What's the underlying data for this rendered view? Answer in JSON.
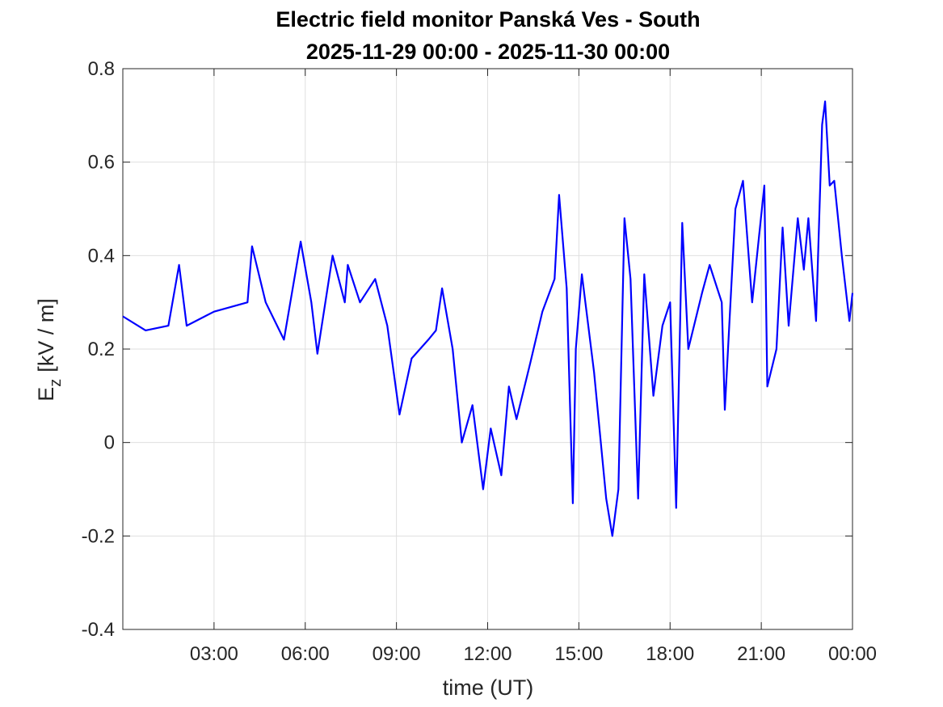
{
  "chart_data": {
    "type": "line",
    "title": "Electric field monitor Panská Ves - South",
    "subtitle": "2025-11-29 00:00 - 2025-11-30 00:00",
    "xlabel": "time (UT)",
    "ylabel": [
      "E",
      "z",
      "[kV / m]"
    ],
    "x": [
      0,
      0.75,
      1.5,
      1.85,
      2.1,
      3.0,
      4.1,
      4.25,
      4.7,
      5.3,
      5.85,
      6.2,
      6.4,
      6.9,
      7.3,
      7.4,
      7.8,
      8.3,
      8.7,
      9.1,
      9.5,
      10.05,
      10.3,
      10.5,
      10.85,
      11.15,
      11.5,
      11.85,
      12.1,
      12.45,
      12.7,
      12.95,
      13.4,
      13.8,
      14.2,
      14.35,
      14.6,
      14.8,
      14.9,
      15.1,
      15.5,
      15.9,
      16.1,
      16.3,
      16.5,
      16.7,
      16.95,
      17.15,
      17.45,
      17.75,
      18.0,
      18.2,
      18.4,
      18.6,
      19.05,
      19.3,
      19.7,
      19.8,
      20.15,
      20.4,
      20.7,
      21.1,
      21.2,
      21.5,
      21.7,
      21.9,
      22.2,
      22.4,
      22.55,
      22.8,
      23.0,
      23.1,
      23.25,
      23.4,
      23.65,
      23.9,
      24.0
    ],
    "series": [
      {
        "name": "Ez",
        "color": "#0000ff",
        "values": [
          0.27,
          0.24,
          0.25,
          0.38,
          0.25,
          0.28,
          0.3,
          0.42,
          0.3,
          0.22,
          0.43,
          0.3,
          0.19,
          0.4,
          0.3,
          0.38,
          0.3,
          0.35,
          0.25,
          0.06,
          0.18,
          0.22,
          0.24,
          0.33,
          0.2,
          0.0,
          0.08,
          -0.1,
          0.03,
          -0.07,
          0.12,
          0.05,
          0.17,
          0.28,
          0.35,
          0.53,
          0.33,
          -0.13,
          0.2,
          0.36,
          0.15,
          -0.12,
          -0.2,
          -0.1,
          0.48,
          0.35,
          -0.12,
          0.36,
          0.1,
          0.25,
          0.3,
          -0.14,
          0.47,
          0.2,
          0.32,
          0.38,
          0.3,
          0.07,
          0.5,
          0.56,
          0.3,
          0.55,
          0.12,
          0.2,
          0.46,
          0.25,
          0.48,
          0.37,
          0.48,
          0.26,
          0.68,
          0.73,
          0.55,
          0.56,
          0.4,
          0.26,
          0.32
        ]
      }
    ],
    "xlim": [
      0,
      24
    ],
    "xticks": [
      {
        "value": 3,
        "label": "03:00"
      },
      {
        "value": 6,
        "label": "06:00"
      },
      {
        "value": 9,
        "label": "09:00"
      },
      {
        "value": 12,
        "label": "12:00"
      },
      {
        "value": 15,
        "label": "15:00"
      },
      {
        "value": 18,
        "label": "18:00"
      },
      {
        "value": 21,
        "label": "21:00"
      },
      {
        "value": 24,
        "label": "00:00"
      }
    ],
    "ylim": [
      -0.4,
      0.8
    ],
    "yticks": [
      -0.4,
      -0.2,
      0,
      0.2,
      0.4,
      0.6,
      0.8
    ],
    "grid": true
  }
}
